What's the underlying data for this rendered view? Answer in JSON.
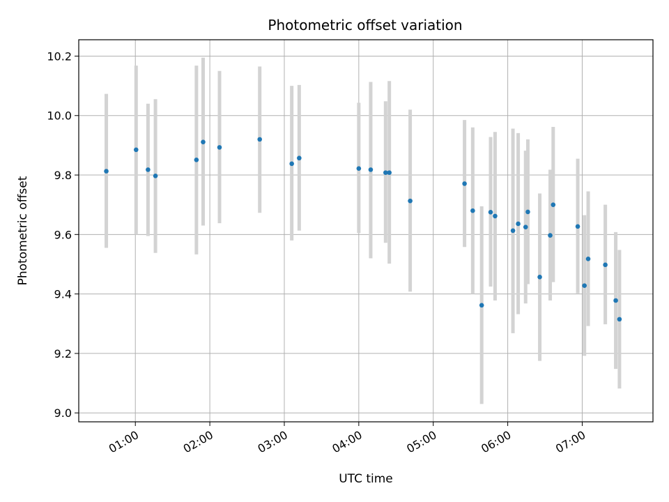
{
  "chart_data": {
    "type": "scatter",
    "title": "Photometric offset variation",
    "xlabel": "UTC time",
    "ylabel": "Photometric offset",
    "grid": true,
    "xlim_hours": [
      0.24,
      7.95
    ],
    "ylim": [
      8.97,
      10.255
    ],
    "x_ticks": [
      {
        "hour": 1,
        "label": "01:00"
      },
      {
        "hour": 2,
        "label": "02:00"
      },
      {
        "hour": 3,
        "label": "03:00"
      },
      {
        "hour": 4,
        "label": "04:00"
      },
      {
        "hour": 5,
        "label": "05:00"
      },
      {
        "hour": 6,
        "label": "06:00"
      },
      {
        "hour": 7,
        "label": "07:00"
      }
    ],
    "y_ticks": [
      {
        "value": 9.0,
        "label": "9.0"
      },
      {
        "value": 9.2,
        "label": "9.2"
      },
      {
        "value": 9.4,
        "label": "9.4"
      },
      {
        "value": 9.6,
        "label": "9.6"
      },
      {
        "value": 9.8,
        "label": "9.8"
      },
      {
        "value": 10.0,
        "label": "10.0"
      },
      {
        "value": 10.2,
        "label": "10.2"
      }
    ],
    "point_color": "#1f77b4",
    "errorbar_color": "#d3d3d3",
    "series": [
      {
        "name": "offset",
        "points": [
          {
            "t": 0.61,
            "y": 9.813,
            "lo": 9.555,
            "hi": 10.073
          },
          {
            "t": 1.01,
            "y": 9.885,
            "lo": 9.6,
            "hi": 10.168
          },
          {
            "t": 1.17,
            "y": 9.818,
            "lo": 9.595,
            "hi": 10.04
          },
          {
            "t": 1.27,
            "y": 9.797,
            "lo": 9.538,
            "hi": 10.055
          },
          {
            "t": 1.82,
            "y": 9.851,
            "lo": 9.533,
            "hi": 10.168
          },
          {
            "t": 1.91,
            "y": 9.911,
            "lo": 9.63,
            "hi": 10.195
          },
          {
            "t": 2.13,
            "y": 9.893,
            "lo": 9.638,
            "hi": 10.15
          },
          {
            "t": 2.67,
            "y": 9.92,
            "lo": 9.673,
            "hi": 10.165
          },
          {
            "t": 3.1,
            "y": 9.838,
            "lo": 9.58,
            "hi": 10.1
          },
          {
            "t": 3.2,
            "y": 9.857,
            "lo": 9.613,
            "hi": 10.103
          },
          {
            "t": 4.0,
            "y": 9.822,
            "lo": 9.605,
            "hi": 10.043
          },
          {
            "t": 4.16,
            "y": 9.818,
            "lo": 9.52,
            "hi": 10.113
          },
          {
            "t": 4.36,
            "y": 9.808,
            "lo": 9.572,
            "hi": 10.048
          },
          {
            "t": 4.41,
            "y": 9.808,
            "lo": 9.502,
            "hi": 10.116
          },
          {
            "t": 4.69,
            "y": 9.713,
            "lo": 9.408,
            "hi": 10.02
          },
          {
            "t": 5.42,
            "y": 9.771,
            "lo": 9.558,
            "hi": 9.985
          },
          {
            "t": 5.53,
            "y": 9.68,
            "lo": 9.4,
            "hi": 9.96
          },
          {
            "t": 5.65,
            "y": 9.362,
            "lo": 9.03,
            "hi": 9.695
          },
          {
            "t": 5.77,
            "y": 9.675,
            "lo": 9.425,
            "hi": 9.928
          },
          {
            "t": 5.83,
            "y": 9.662,
            "lo": 9.378,
            "hi": 9.945
          },
          {
            "t": 6.07,
            "y": 9.613,
            "lo": 9.268,
            "hi": 9.956
          },
          {
            "t": 6.14,
            "y": 9.636,
            "lo": 9.332,
            "hi": 9.941
          },
          {
            "t": 6.24,
            "y": 9.625,
            "lo": 9.368,
            "hi": 9.882
          },
          {
            "t": 6.27,
            "y": 9.676,
            "lo": 9.433,
            "hi": 9.92
          },
          {
            "t": 6.43,
            "y": 9.457,
            "lo": 9.175,
            "hi": 9.738
          },
          {
            "t": 6.57,
            "y": 9.597,
            "lo": 9.378,
            "hi": 9.818
          },
          {
            "t": 6.61,
            "y": 9.7,
            "lo": 9.44,
            "hi": 9.962
          },
          {
            "t": 6.94,
            "y": 9.627,
            "lo": 9.402,
            "hi": 9.855
          },
          {
            "t": 7.03,
            "y": 9.428,
            "lo": 9.192,
            "hi": 9.665
          },
          {
            "t": 7.08,
            "y": 9.518,
            "lo": 9.292,
            "hi": 9.745
          },
          {
            "t": 7.31,
            "y": 9.498,
            "lo": 9.298,
            "hi": 9.7
          },
          {
            "t": 7.45,
            "y": 9.378,
            "lo": 9.148,
            "hi": 9.608
          },
          {
            "t": 7.5,
            "y": 9.315,
            "lo": 9.082,
            "hi": 9.548
          }
        ]
      }
    ]
  }
}
